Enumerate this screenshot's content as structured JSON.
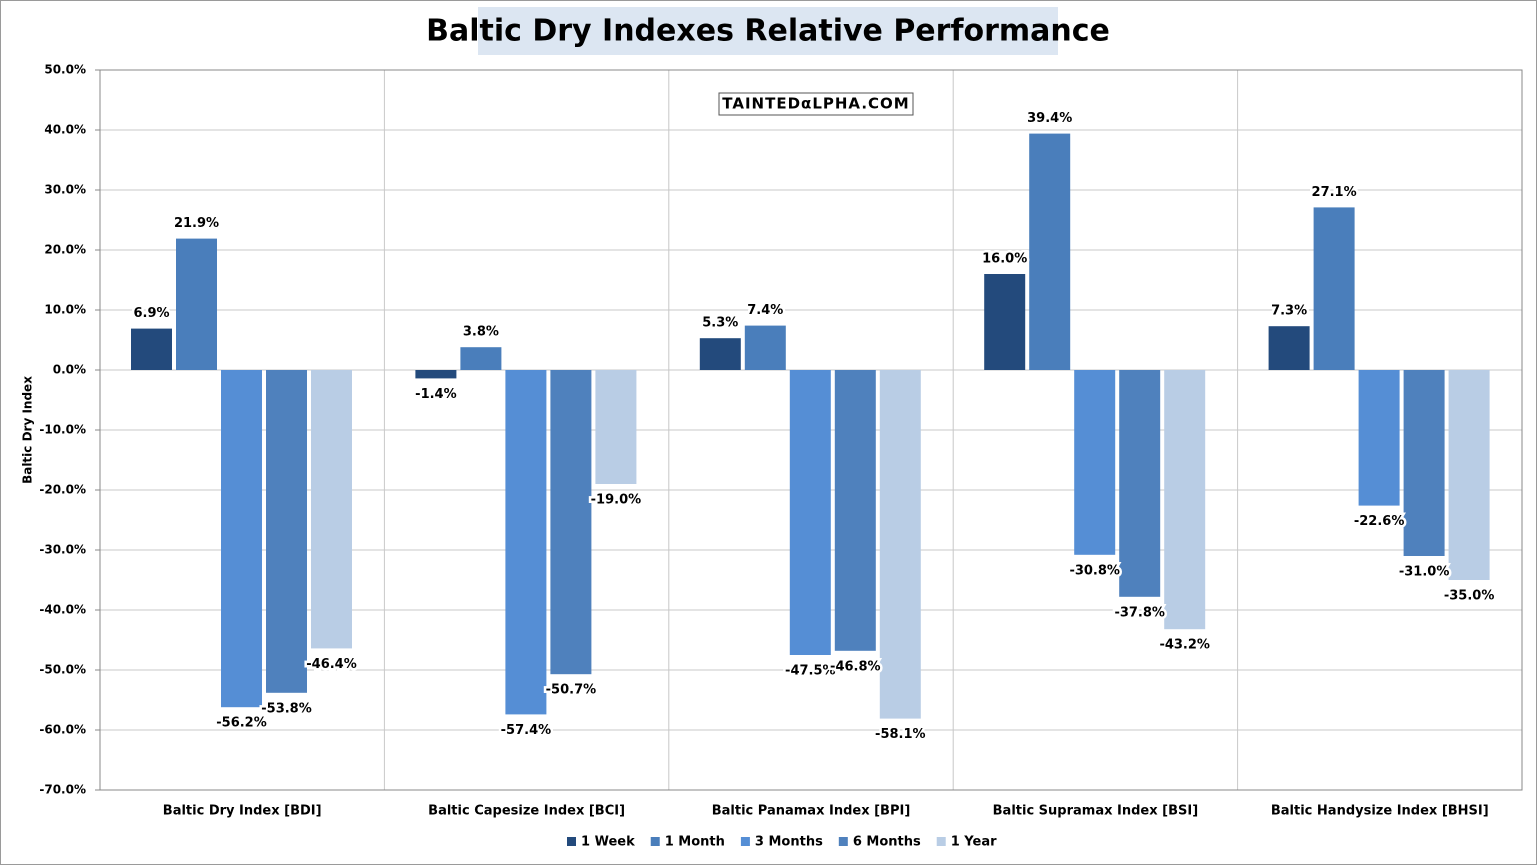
{
  "chart_data": {
    "type": "bar",
    "title": "Baltic Dry Indexes Relative Performance",
    "watermark": "TAINTEDαLPHA.COM",
    "y_label": "Baltic Dry  Index",
    "categories": [
      "Baltic Dry Index [BDI]",
      "Baltic Capesize Index [BCI]",
      "Baltic Panamax Index [BPI]",
      "Baltic Supramax Index [BSI]",
      "Baltic Handysize Index [BHSI]"
    ],
    "series": [
      {
        "name": "1 Week",
        "color": "#234a7c",
        "values": [
          6.9,
          -1.4,
          5.3,
          16.0,
          7.3
        ],
        "value_labels": [
          "6.9%",
          "-1.4%",
          "5.3%",
          "16.0%",
          "7.3%"
        ]
      },
      {
        "name": "1 Month",
        "color": "#4a7ebb",
        "values": [
          21.9,
          3.8,
          7.4,
          39.4,
          27.1
        ],
        "value_labels": [
          "21.9%",
          "3.8%",
          "7.4%",
          "39.4%",
          "27.1%"
        ]
      },
      {
        "name": "3 Months",
        "color": "#558ed5",
        "values": [
          -56.2,
          -57.4,
          -47.5,
          -30.8,
          -22.6
        ],
        "value_labels": [
          "-56.2%",
          "-57.4%",
          "-47.5%",
          "-30.8%",
          "-22.6%"
        ]
      },
      {
        "name": "6 Months",
        "color": "#4f81bd",
        "values": [
          -53.8,
          -50.7,
          -46.8,
          -37.8,
          -31.0
        ],
        "value_labels": [
          "-53.8%",
          "-50.7%",
          "-46.8%",
          "-37.8%",
          "-31.0%"
        ]
      },
      {
        "name": "1 Year",
        "color": "#b9cde5",
        "values": [
          -46.4,
          -19.0,
          -58.1,
          -43.2,
          -35.0
        ],
        "value_labels": [
          "-46.4%",
          "-19.0%",
          "-58.1%",
          "-43.2%",
          "-35.0%"
        ]
      }
    ],
    "ylim": [
      -70,
      50
    ],
    "yticks": [
      {
        "value": -70,
        "label": "-70.0%"
      },
      {
        "value": -60,
        "label": "-60.0%"
      },
      {
        "value": -50,
        "label": "-50.0%"
      },
      {
        "value": -40,
        "label": "-40.0%"
      },
      {
        "value": -30,
        "label": "-30.0%"
      },
      {
        "value": -20,
        "label": "-20.0%"
      },
      {
        "value": -10,
        "label": "-10.0%"
      },
      {
        "value": 0,
        "label": "0.0%"
      },
      {
        "value": 10,
        "label": "10.0%"
      },
      {
        "value": 20,
        "label": "20.0%"
      },
      {
        "value": 30,
        "label": "30.0%"
      },
      {
        "value": 40,
        "label": "40.0%"
      },
      {
        "value": 50,
        "label": "50.0%"
      }
    ],
    "grid": true,
    "legend": "bottom"
  }
}
